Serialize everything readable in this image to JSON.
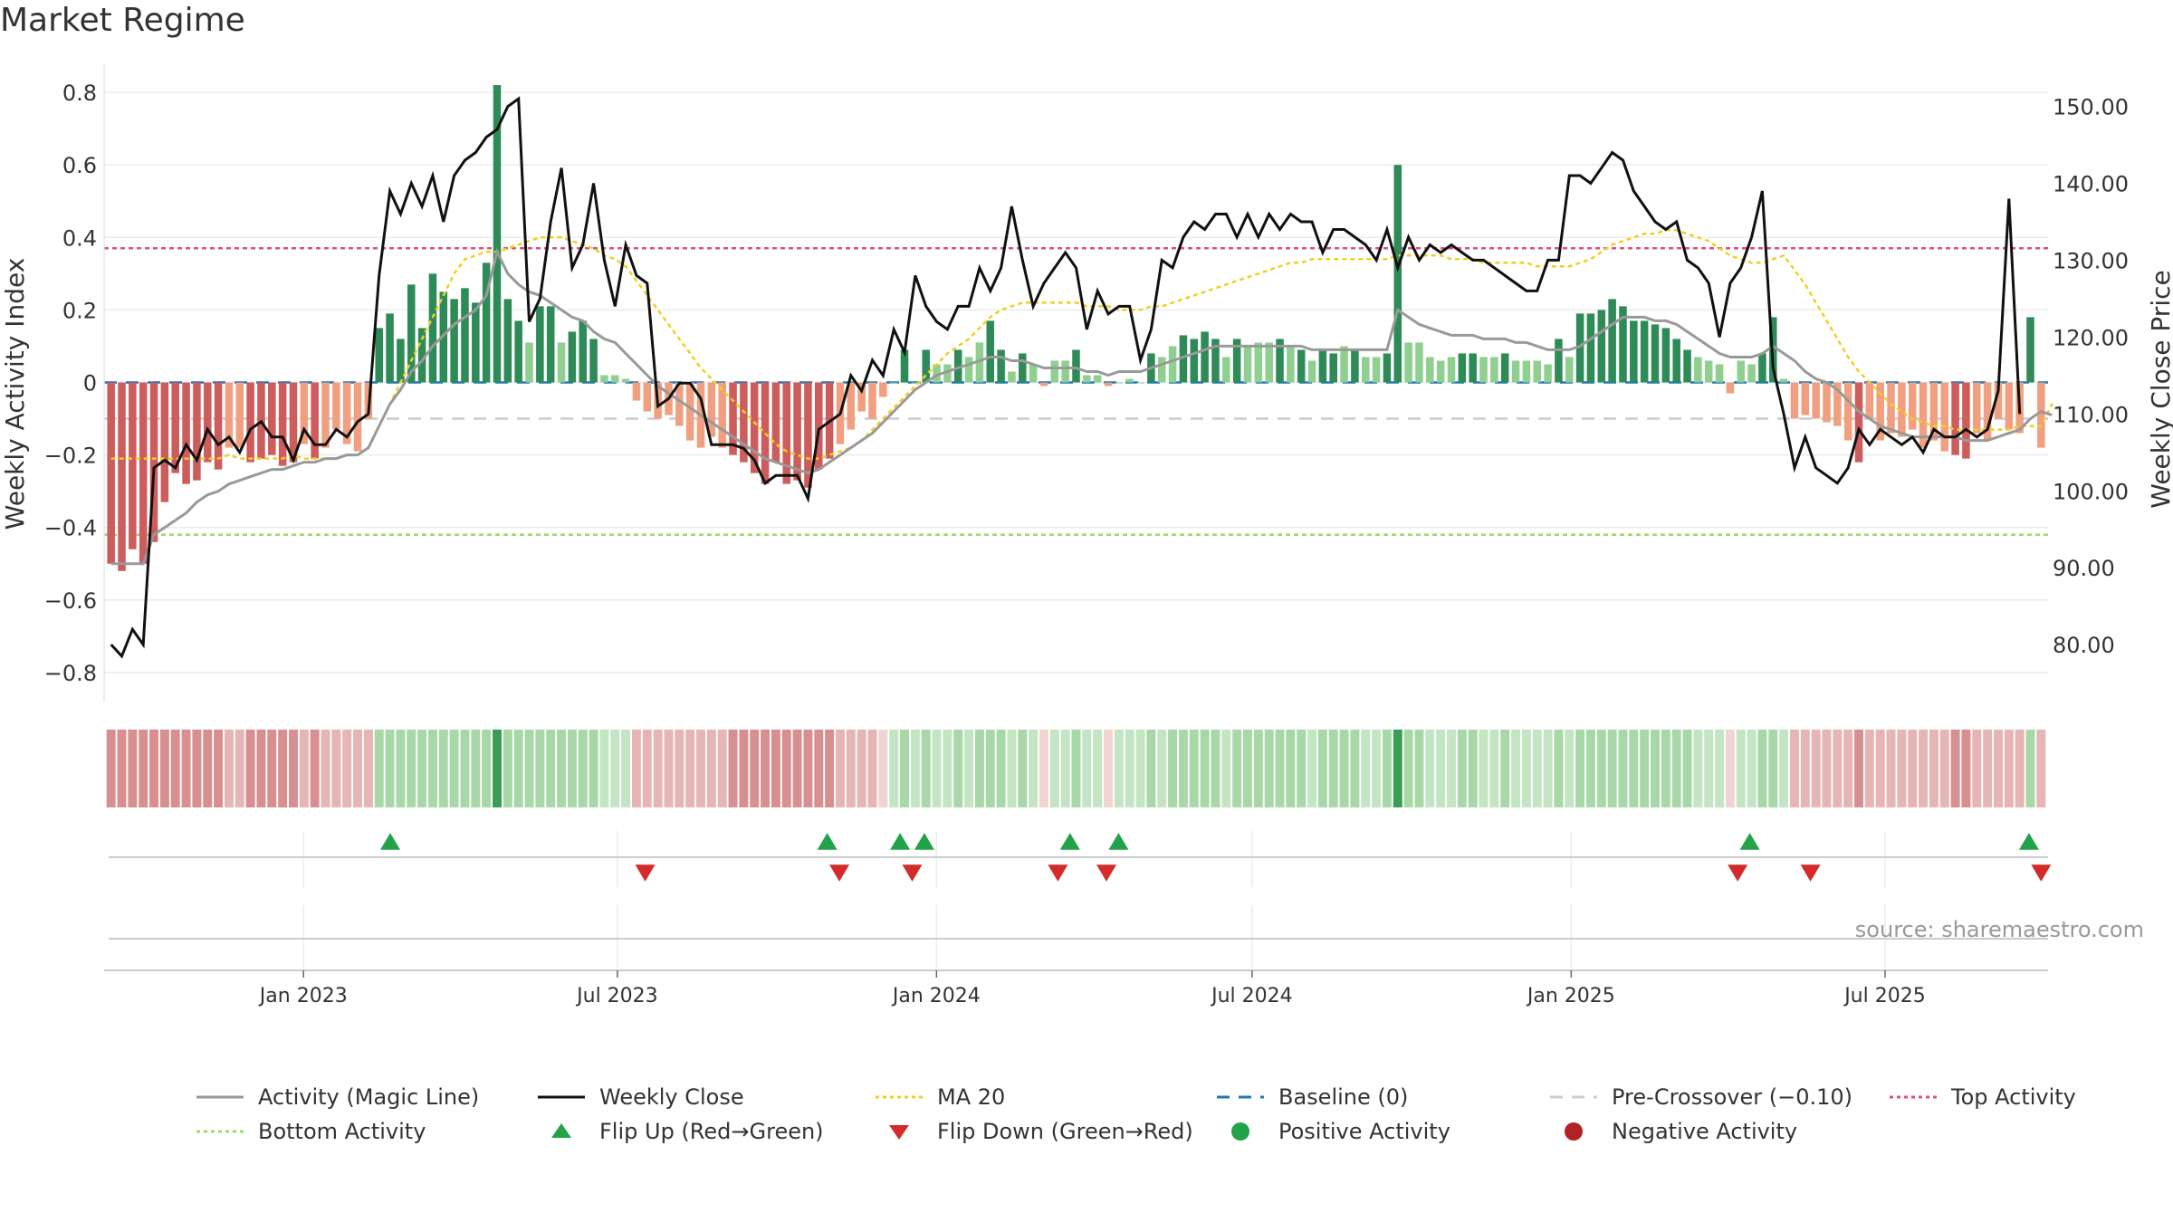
{
  "title": "Market Regime",
  "source": "source: sharemaestro.com",
  "colors": {
    "magic": "#999999",
    "close": "#111111",
    "ma20": "#f0d020",
    "baseline": "#1f77b4",
    "precross": "#cccccc",
    "top": "#e0507a",
    "bottom": "#90dd70",
    "pos_dark": "#2e8b57",
    "pos_light": "#8fcf8f",
    "neg_dark": "#cd5c5c",
    "neg_light": "#f0a080",
    "flip_up": "#22a34a",
    "flip_down": "#d42a2a",
    "grid": "#ececec"
  },
  "chart_data": {
    "type": "bar",
    "x_start": "2022-09-12",
    "x_end": "2025-09-29",
    "x_ticks": [
      {
        "date": "2023-01-01",
        "label": "Jan 2023"
      },
      {
        "date": "2023-07-01",
        "label": "Jul 2023"
      },
      {
        "date": "2024-01-01",
        "label": "Jan 2024"
      },
      {
        "date": "2024-07-01",
        "label": "Jul 2024"
      },
      {
        "date": "2025-01-01",
        "label": "Jan 2025"
      },
      {
        "date": "2025-07-01",
        "label": "Jul 2025"
      }
    ],
    "ylabel": "Weekly Activity Index",
    "ylabel_right": "Weekly Close Price",
    "ylim": [
      -0.88,
      0.88
    ],
    "y_ticks": [
      -0.8,
      -0.6,
      -0.4,
      -0.2,
      0,
      0.2,
      0.4,
      0.6,
      0.8
    ],
    "y_tick_labels": [
      "−0.8",
      "−0.6",
      "−0.4",
      "−0.2",
      "0",
      "0.2",
      "0.4",
      "0.6",
      "0.8"
    ],
    "ylim_right": [
      72.6,
      155.6
    ],
    "y_ticks_right": [
      80,
      90,
      100,
      110,
      120,
      130,
      140,
      150
    ],
    "y_tick_labels_right": [
      "80.00",
      "90.00",
      "100.00",
      "110.00",
      "120.00",
      "130.00",
      "140.00",
      "150.00"
    ],
    "top_activity": 0.37,
    "bottom_activity": -0.42,
    "pre_crossover": -0.1,
    "activity": [
      -0.5,
      -0.52,
      -0.46,
      -0.5,
      -0.44,
      -0.33,
      -0.25,
      -0.28,
      -0.27,
      -0.22,
      -0.24,
      -0.18,
      -0.18,
      -0.22,
      -0.21,
      -0.2,
      -0.23,
      -0.22,
      -0.17,
      -0.21,
      -0.18,
      -0.13,
      -0.17,
      -0.19,
      -0.1,
      0.15,
      0.19,
      0.12,
      0.27,
      0.15,
      0.3,
      0.25,
      0.23,
      0.26,
      0.22,
      0.33,
      0.82,
      0.23,
      0.17,
      0.11,
      0.21,
      0.21,
      0.11,
      0.14,
      0.17,
      0.12,
      0.02,
      0.02,
      0.01,
      -0.05,
      -0.08,
      -0.1,
      -0.09,
      -0.12,
      -0.16,
      -0.18,
      -0.15,
      -0.18,
      -0.2,
      -0.22,
      -0.25,
      -0.28,
      -0.22,
      -0.28,
      -0.27,
      -0.29,
      -0.24,
      -0.21,
      -0.17,
      -0.13,
      -0.08,
      -0.1,
      -0.04,
      0,
      0.09,
      0,
      0.09,
      0.05,
      0.05,
      0.09,
      0.07,
      0.11,
      0.17,
      0.09,
      0.03,
      0.08,
      0.05,
      -0.01,
      0.06,
      0.06,
      0.09,
      0.02,
      0.02,
      -0.01,
      0,
      0.01,
      0,
      0.08,
      0.07,
      0.1,
      0.13,
      0.12,
      0.14,
      0.12,
      0.07,
      0.12,
      0.1,
      0.11,
      0.11,
      0.12,
      0.1,
      0.09,
      0.06,
      0.09,
      0.08,
      0.1,
      0.09,
      0.07,
      0.07,
      0.08,
      0.6,
      0.11,
      0.11,
      0.07,
      0.06,
      0.07,
      0.08,
      0.08,
      0.07,
      0.07,
      0.08,
      0.06,
      0.06,
      0.06,
      0.05,
      0.12,
      0.07,
      0.19,
      0.19,
      0.2,
      0.23,
      0.21,
      0.17,
      0.17,
      0.16,
      0.15,
      0.12,
      0.09,
      0.07,
      0.06,
      0.05,
      -0.03,
      0.06,
      0.05,
      0.08,
      0.18,
      0.01,
      -0.1,
      -0.09,
      -0.1,
      -0.11,
      -0.12,
      -0.16,
      -0.22,
      -0.1,
      -0.16,
      -0.14,
      -0.15,
      -0.13,
      -0.18,
      -0.16,
      -0.19,
      -0.2,
      -0.21,
      -0.14,
      -0.16,
      -0.1,
      -0.13,
      -0.14,
      0.18,
      -0.18
    ],
    "weekly_close": [
      80,
      78.5,
      82,
      80,
      103,
      104,
      103,
      106,
      104,
      108,
      106,
      107,
      105,
      108,
      109,
      107,
      107,
      104,
      108,
      106,
      106,
      108,
      107,
      109,
      110,
      128,
      139,
      136,
      140,
      137,
      141,
      135,
      141,
      143,
      144,
      146,
      147,
      150,
      151,
      122,
      125,
      135,
      142,
      129,
      132,
      140,
      130,
      124,
      132,
      128,
      127,
      111,
      112,
      114,
      114,
      112,
      106,
      106,
      106,
      105.5,
      104,
      101,
      102,
      102,
      102,
      99,
      108,
      109,
      110,
      115,
      113,
      117,
      115,
      121,
      118,
      128,
      124,
      122,
      121,
      124,
      124,
      129,
      126,
      129,
      137,
      130,
      124,
      127,
      129,
      131,
      129,
      121,
      126,
      123,
      124,
      124,
      117,
      121,
      130,
      129,
      133,
      135,
      134,
      136,
      136,
      133,
      136,
      133,
      136,
      134,
      136,
      135,
      135,
      131,
      134,
      134,
      133,
      132,
      130,
      134,
      129,
      133,
      130,
      132,
      131,
      132,
      131,
      130,
      130,
      129,
      128,
      127,
      126,
      126,
      130,
      130,
      141,
      141,
      140,
      142,
      144,
      143,
      139,
      137,
      135,
      134,
      135,
      130,
      129,
      127,
      120,
      127,
      129,
      133,
      139,
      116,
      110,
      103,
      107,
      103,
      102,
      101,
      103,
      108,
      106,
      108,
      107,
      106,
      107,
      105,
      108,
      107,
      107,
      108,
      107,
      108,
      113,
      138,
      110
    ],
    "magic_line": [
      -0.5,
      -0.5,
      -0.5,
      -0.5,
      -0.42,
      -0.4,
      -0.38,
      -0.36,
      -0.33,
      -0.31,
      -0.3,
      -0.28,
      -0.27,
      -0.26,
      -0.25,
      -0.24,
      -0.24,
      -0.23,
      -0.22,
      -0.22,
      -0.21,
      -0.21,
      -0.2,
      -0.2,
      -0.18,
      -0.12,
      -0.06,
      -0.02,
      0.03,
      0.06,
      0.1,
      0.13,
      0.16,
      0.18,
      0.2,
      0.24,
      0.36,
      0.3,
      0.27,
      0.25,
      0.24,
      0.22,
      0.2,
      0.18,
      0.17,
      0.14,
      0.12,
      0.11,
      0.08,
      0.05,
      0.02,
      -0.01,
      -0.03,
      -0.05,
      -0.07,
      -0.09,
      -0.11,
      -0.13,
      -0.15,
      -0.17,
      -0.19,
      -0.21,
      -0.22,
      -0.23,
      -0.24,
      -0.25,
      -0.24,
      -0.22,
      -0.2,
      -0.18,
      -0.16,
      -0.14,
      -0.11,
      -0.08,
      -0.05,
      -0.02,
      0,
      0.02,
      0.03,
      0.04,
      0.05,
      0.06,
      0.07,
      0.07,
      0.06,
      0.06,
      0.05,
      0.04,
      0.04,
      0.04,
      0.04,
      0.03,
      0.03,
      0.02,
      0.03,
      0.03,
      0.03,
      0.04,
      0.05,
      0.06,
      0.07,
      0.08,
      0.09,
      0.1,
      0.1,
      0.1,
      0.1,
      0.1,
      0.1,
      0.1,
      0.1,
      0.1,
      0.09,
      0.09,
      0.09,
      0.09,
      0.09,
      0.09,
      0.09,
      0.09,
      0.2,
      0.18,
      0.16,
      0.15,
      0.14,
      0.13,
      0.13,
      0.13,
      0.12,
      0.12,
      0.12,
      0.11,
      0.11,
      0.1,
      0.09,
      0.09,
      0.09,
      0.1,
      0.12,
      0.14,
      0.16,
      0.18,
      0.18,
      0.18,
      0.17,
      0.17,
      0.16,
      0.14,
      0.12,
      0.1,
      0.08,
      0.07,
      0.07,
      0.07,
      0.08,
      0.1,
      0.08,
      0.06,
      0.03,
      0.01,
      0,
      -0.02,
      -0.05,
      -0.08,
      -0.1,
      -0.12,
      -0.13,
      -0.14,
      -0.15,
      -0.15,
      -0.15,
      -0.15,
      -0.15,
      -0.16,
      -0.16,
      -0.16,
      -0.15,
      -0.14,
      -0.13,
      -0.1,
      -0.08,
      -0.09
    ],
    "ma20": [
      -0.21,
      -0.21,
      -0.21,
      -0.21,
      -0.21,
      -0.21,
      -0.21,
      -0.21,
      -0.21,
      -0.21,
      -0.21,
      -0.2,
      -0.21,
      -0.21,
      -0.21,
      -0.21,
      -0.21,
      -0.2,
      -0.21,
      -0.21,
      -0.21,
      -0.21,
      -0.2,
      -0.2,
      -0.18,
      -0.12,
      -0.06,
      0.0,
      0.06,
      0.12,
      0.18,
      0.24,
      0.3,
      0.34,
      0.35,
      0.36,
      0.36,
      0.37,
      0.38,
      0.39,
      0.4,
      0.4,
      0.4,
      0.39,
      0.38,
      0.37,
      0.35,
      0.34,
      0.32,
      0.28,
      0.24,
      0.2,
      0.16,
      0.12,
      0.08,
      0.04,
      0.01,
      -0.02,
      -0.05,
      -0.08,
      -0.11,
      -0.14,
      -0.17,
      -0.19,
      -0.2,
      -0.21,
      -0.21,
      -0.2,
      -0.19,
      -0.18,
      -0.16,
      -0.13,
      -0.1,
      -0.07,
      -0.04,
      -0.01,
      0.02,
      0.05,
      0.08,
      0.1,
      0.12,
      0.15,
      0.18,
      0.2,
      0.21,
      0.22,
      0.22,
      0.22,
      0.22,
      0.22,
      0.22,
      0.21,
      0.21,
      0.21,
      0.2,
      0.2,
      0.2,
      0.21,
      0.21,
      0.22,
      0.23,
      0.24,
      0.25,
      0.26,
      0.27,
      0.28,
      0.29,
      0.3,
      0.31,
      0.32,
      0.33,
      0.33,
      0.34,
      0.34,
      0.34,
      0.34,
      0.34,
      0.34,
      0.34,
      0.34,
      0.35,
      0.35,
      0.35,
      0.35,
      0.35,
      0.34,
      0.34,
      0.34,
      0.33,
      0.33,
      0.33,
      0.33,
      0.33,
      0.32,
      0.32,
      0.32,
      0.32,
      0.33,
      0.34,
      0.36,
      0.38,
      0.39,
      0.4,
      0.41,
      0.41,
      0.42,
      0.42,
      0.41,
      0.4,
      0.39,
      0.37,
      0.35,
      0.34,
      0.33,
      0.33,
      0.34,
      0.35,
      0.31,
      0.27,
      0.22,
      0.17,
      0.12,
      0.07,
      0.03,
      0.0,
      -0.03,
      -0.06,
      -0.08,
      -0.1,
      -0.11,
      -0.12,
      -0.12,
      -0.13,
      -0.13,
      -0.13,
      -0.13,
      -0.13,
      -0.13,
      -0.12,
      -0.12,
      -0.12,
      -0.06,
      -0.08
    ],
    "flip_up": [
      "2023-02-20",
      "2023-10-30",
      "2023-12-11",
      "2023-12-25",
      "2024-03-18",
      "2024-04-15",
      "2025-04-14",
      "2025-09-22"
    ],
    "flip_down": [
      "2023-07-17",
      "2023-11-06",
      "2023-12-18",
      "2024-03-11",
      "2024-04-08",
      "2025-04-07",
      "2025-05-19",
      "2025-09-29"
    ],
    "series": [
      {
        "name": "Activity (Magic Line)"
      },
      {
        "name": "Weekly Close"
      },
      {
        "name": "MA 20"
      },
      {
        "name": "Baseline (0)"
      },
      {
        "name": "Pre-Crossover (−0.10)"
      },
      {
        "name": "Top Activity"
      },
      {
        "name": "Bottom Activity"
      },
      {
        "name": "Flip Up (Red→Green)"
      },
      {
        "name": "Flip Down (Green→Red)"
      },
      {
        "name": "Positive Activity"
      },
      {
        "name": "Negative Activity"
      }
    ]
  },
  "legend": [
    {
      "key": "magic",
      "label": "Activity (Magic Line)",
      "sym": "line"
    },
    {
      "key": "close",
      "label": "Weekly Close",
      "sym": "line"
    },
    {
      "key": "ma20",
      "label": "MA 20",
      "sym": "dotted"
    },
    {
      "key": "baseline",
      "label": "Baseline (0)",
      "sym": "dashed"
    },
    {
      "key": "precross",
      "label": "Pre-Crossover (−0.10)",
      "sym": "dashed"
    },
    {
      "key": "top",
      "label": "Top Activity",
      "sym": "dotted"
    },
    {
      "key": "bottom",
      "label": "Bottom Activity",
      "sym": "dotted"
    },
    {
      "key": "flip_up",
      "label": "Flip Up (Red→Green)",
      "sym": "tri-up"
    },
    {
      "key": "flip_down",
      "label": "Flip Down (Green→Red)",
      "sym": "tri-down"
    },
    {
      "key": "pos_dark",
      "label": "Positive Activity",
      "sym": "dot"
    },
    {
      "key": "neg_dark",
      "label": "Negative Activity",
      "sym": "dot"
    }
  ]
}
